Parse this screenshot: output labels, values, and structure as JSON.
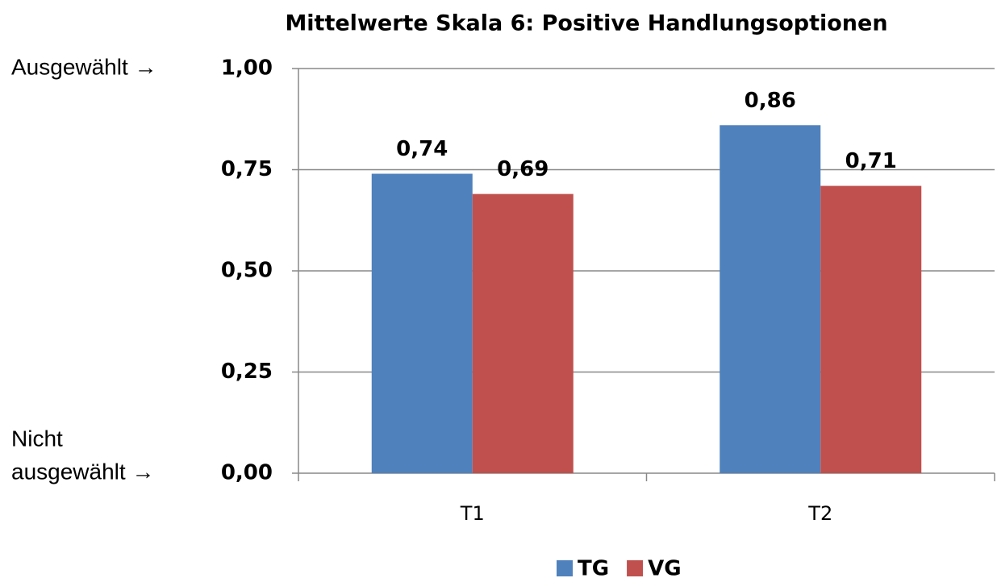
{
  "chart_data": {
    "type": "bar",
    "title": "Mittelwerte Skala 6: Positive Handlungsoptionen",
    "categories": [
      "T1",
      "T2"
    ],
    "series": [
      {
        "name": "TG",
        "color": "#4f81bd",
        "values": [
          0.74,
          0.86
        ],
        "value_labels": [
          "0,74",
          "0,86"
        ]
      },
      {
        "name": "VG",
        "color": "#c0504d",
        "values": [
          0.69,
          0.71
        ],
        "value_labels": [
          "0,69",
          "0,71"
        ]
      }
    ],
    "ylim": [
      0,
      1
    ],
    "yticks": [
      {
        "value": 0,
        "label": "0,00"
      },
      {
        "value": 0.25,
        "label": "0,25"
      },
      {
        "value": 0.5,
        "label": "0,50"
      },
      {
        "value": 0.75,
        "label": "0,75"
      },
      {
        "value": 1,
        "label": "1,00"
      }
    ],
    "grid": true,
    "legend": "bottom",
    "annotations": [
      {
        "lines": [
          "Ausgewählt →"
        ]
      },
      {
        "lines": [
          "Nicht",
          "ausgewählt →"
        ]
      }
    ]
  }
}
